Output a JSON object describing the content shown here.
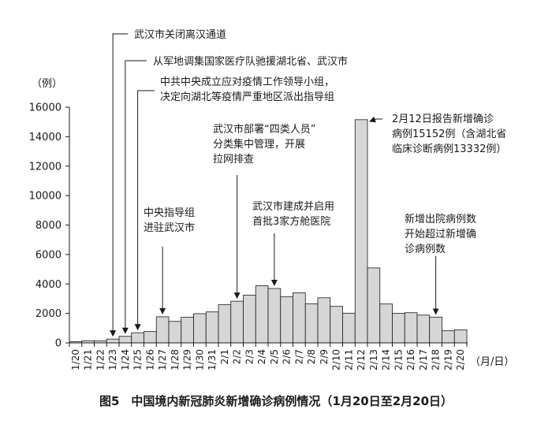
{
  "caption": "图5　中国境内新冠肺炎新增确诊病例情况（1月20日至2月20日）",
  "chart_data": {
    "type": "bar",
    "title": "",
    "ylabel": "（例）",
    "xlabel": "（月/日）",
    "ylim": [
      0,
      16000
    ],
    "yticks": [
      0,
      2000,
      4000,
      6000,
      8000,
      10000,
      12000,
      14000,
      16000
    ],
    "grid": false,
    "categories": [
      "1/20",
      "1/21",
      "1/22",
      "1/23",
      "1/24",
      "1/25",
      "1/26",
      "1/27",
      "1/28",
      "1/29",
      "1/30",
      "1/31",
      "2/1",
      "2/2",
      "2/3",
      "2/4",
      "2/5",
      "2/6",
      "2/7",
      "2/8",
      "2/9",
      "2/10",
      "2/11",
      "2/12",
      "2/13",
      "2/14",
      "2/15",
      "2/16",
      "2/17",
      "2/18",
      "2/19",
      "2/20"
    ],
    "values": [
      77,
      149,
      131,
      259,
      444,
      688,
      769,
      1771,
      1459,
      1737,
      1982,
      2102,
      2590,
      2829,
      3235,
      3887,
      3694,
      3143,
      3399,
      2656,
      3062,
      2478,
      2015,
      15152,
      5090,
      2641,
      2009,
      2048,
      1886,
      1749,
      820,
      889
    ],
    "annotations": [
      {
        "lines": [
          "武汉市关闭离汉通道"
        ],
        "category": "1/23",
        "side": "left"
      },
      {
        "lines": [
          "从军地调集国家医疗队驰援湖北省、武汉市"
        ],
        "category": "1/24",
        "side": "left"
      },
      {
        "lines": [
          "中共中央成立应对疫情工作领导小组，",
          "决定向湖北等疫情严重地区派出指导组"
        ],
        "category": "1/25",
        "side": "left"
      },
      {
        "lines": [
          "中央指导组",
          "进驻武汉市"
        ],
        "category": "1/27",
        "side": "center"
      },
      {
        "lines": [
          "武汉市部署“四类人员”",
          "分类集中管理，开展",
          "拉网排查"
        ],
        "category": "2/2",
        "side": "center"
      },
      {
        "lines": [
          "武汉市建成并启用",
          "首批3家方舱医院"
        ],
        "category": "2/5",
        "side": "center"
      },
      {
        "lines": [
          "2月12日报告新增确诊",
          "病例15152例（含湖北省",
          "临床诊断病例13332例）"
        ],
        "category": "2/12",
        "side": "right"
      },
      {
        "lines": [
          "新增出院病例数",
          "开始超过新增确",
          "诊病例数"
        ],
        "category": "2/18",
        "side": "center"
      }
    ]
  }
}
